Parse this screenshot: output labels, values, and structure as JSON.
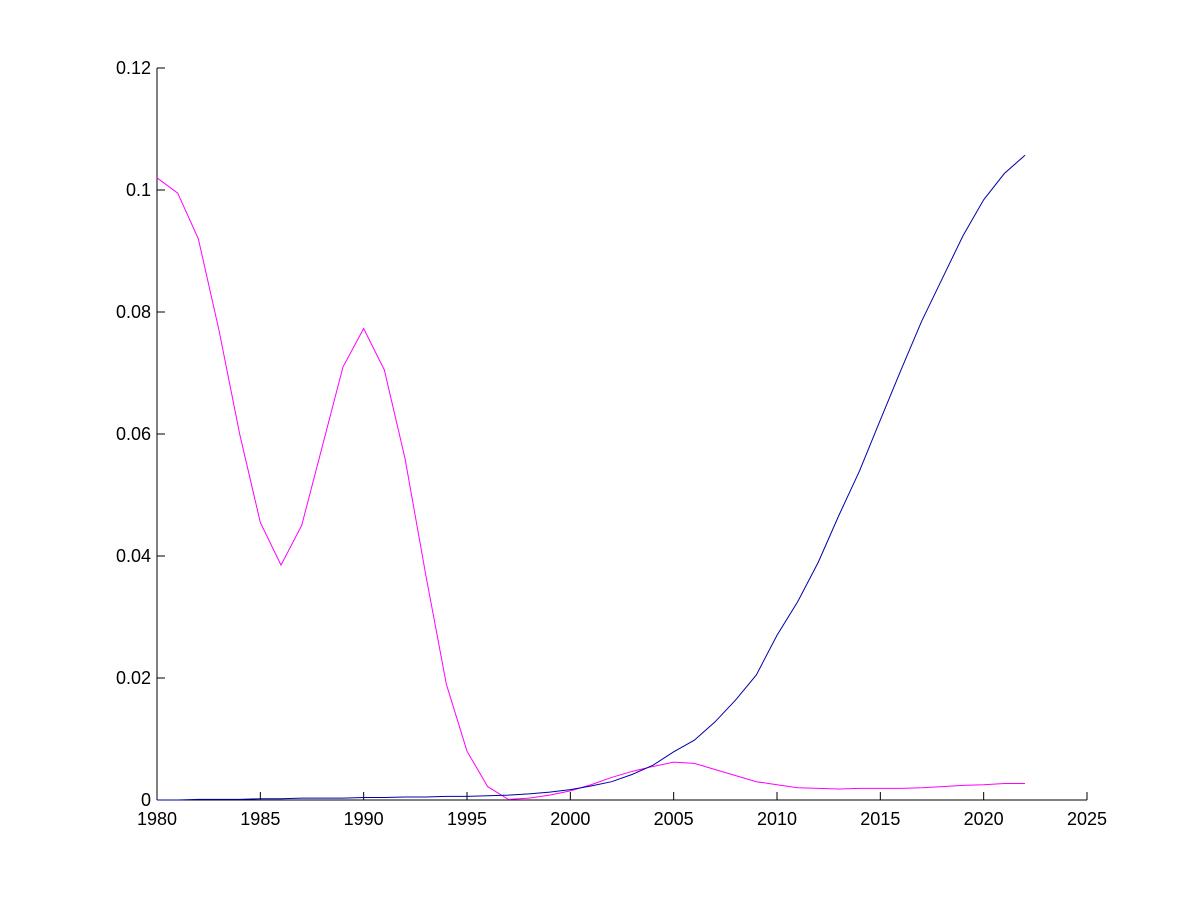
{
  "chart_data": {
    "type": "line",
    "x": [
      1980,
      1981,
      1982,
      1983,
      1984,
      1985,
      1986,
      1987,
      1988,
      1989,
      1990,
      1991,
      1992,
      1993,
      1994,
      1995,
      1996,
      1997,
      1998,
      1999,
      2000,
      2001,
      2002,
      2003,
      2004,
      2005,
      2006,
      2007,
      2008,
      2009,
      2010,
      2011,
      2012,
      2013,
      2014,
      2015,
      2016,
      2017,
      2018,
      2019,
      2020,
      2021,
      2022
    ],
    "series": [
      {
        "color": "#ff00ff",
        "values": [
          0.102,
          0.0995,
          0.092,
          0.077,
          0.06,
          0.0455,
          0.0385,
          0.045,
          0.058,
          0.071,
          0.0773,
          0.0705,
          0.056,
          0.037,
          0.019,
          0.008,
          0.0022,
          0.0001,
          0.0003,
          0.0008,
          0.0015,
          0.0025,
          0.0037,
          0.0047,
          0.0055,
          0.0062,
          0.006,
          0.005,
          0.004,
          0.003,
          0.0025,
          0.002,
          0.0019,
          0.0018,
          0.0019,
          0.0019,
          0.0019,
          0.002,
          0.0022,
          0.0024,
          0.0025,
          0.0027,
          0.0027
        ]
      },
      {
        "color": "#0000aa",
        "values": [
          0,
          0,
          0.0001,
          0.0001,
          0.0001,
          0.0002,
          0.0002,
          0.0003,
          0.0003,
          0.0003,
          0.0004,
          0.0004,
          0.0005,
          0.0005,
          0.0006,
          0.0006,
          0.0007,
          0.0008,
          0.001,
          0.0013,
          0.0017,
          0.0023,
          0.003,
          0.0042,
          0.0057,
          0.0079,
          0.0098,
          0.0128,
          0.0164,
          0.0205,
          0.027,
          0.0325,
          0.039,
          0.0467,
          0.054,
          0.0623,
          0.0705,
          0.0785,
          0.0855,
          0.0925,
          0.0984,
          0.1027,
          0.1057
        ]
      }
    ],
    "xlim": [
      1980,
      2025
    ],
    "xticks": [
      1980,
      1985,
      1990,
      1995,
      2000,
      2005,
      2010,
      2015,
      2020,
      2025
    ],
    "ylim": [
      0,
      0.12
    ],
    "yticks": [
      0,
      0.02,
      0.04,
      0.06,
      0.08,
      0.1,
      0.12
    ]
  }
}
